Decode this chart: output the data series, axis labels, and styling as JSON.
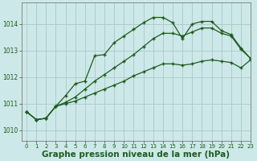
{
  "background_color": "#cde8e8",
  "grid_color": "#b0cccc",
  "line_color": "#1e5c1e",
  "xlabel": "Graphe pression niveau de la mer (hPa)",
  "xlabel_fontsize": 7.5,
  "ylim": [
    1009.6,
    1014.8
  ],
  "xlim": [
    -0.5,
    23
  ],
  "yticks": [
    1010,
    1011,
    1012,
    1013,
    1014
  ],
  "xticks": [
    0,
    1,
    2,
    3,
    4,
    5,
    6,
    7,
    8,
    9,
    10,
    11,
    12,
    13,
    14,
    15,
    16,
    17,
    18,
    19,
    20,
    21,
    22,
    23
  ],
  "line1_x": [
    0,
    1,
    2,
    3,
    4,
    5,
    6,
    7,
    8,
    9,
    10,
    11,
    12,
    13,
    14,
    15,
    16,
    17,
    18,
    19,
    20,
    21,
    22,
    23
  ],
  "line1_y": [
    1010.7,
    1010.4,
    1010.45,
    1010.9,
    1011.3,
    1011.75,
    1011.85,
    1012.8,
    1012.85,
    1013.3,
    1013.55,
    1013.8,
    1014.05,
    1014.25,
    1014.25,
    1014.05,
    1013.45,
    1014.0,
    1014.1,
    1014.1,
    1013.75,
    1013.6,
    1013.1,
    1012.7
  ],
  "line2_x": [
    0,
    1,
    2,
    3,
    4,
    5,
    6,
    7,
    8,
    9,
    10,
    11,
    12,
    13,
    14,
    15,
    16,
    17,
    18,
    19,
    20,
    21,
    22,
    23
  ],
  "line2_y": [
    1010.7,
    1010.4,
    1010.45,
    1010.9,
    1011.05,
    1011.25,
    1011.55,
    1011.85,
    1012.1,
    1012.35,
    1012.6,
    1012.85,
    1013.15,
    1013.45,
    1013.65,
    1013.65,
    1013.55,
    1013.7,
    1013.85,
    1013.85,
    1013.65,
    1013.55,
    1013.05,
    1012.7
  ],
  "line3_x": [
    0,
    1,
    2,
    3,
    4,
    5,
    6,
    7,
    8,
    9,
    10,
    11,
    12,
    13,
    14,
    15,
    16,
    17,
    18,
    19,
    20,
    21,
    22,
    23
  ],
  "line3_y": [
    1010.7,
    1010.4,
    1010.45,
    1010.9,
    1011.0,
    1011.1,
    1011.25,
    1011.4,
    1011.55,
    1011.7,
    1011.85,
    1012.05,
    1012.2,
    1012.35,
    1012.5,
    1012.5,
    1012.45,
    1012.5,
    1012.6,
    1012.65,
    1012.6,
    1012.55,
    1012.35,
    1012.65
  ],
  "marker": "+",
  "markersize": 3.5,
  "linewidth": 0.9
}
